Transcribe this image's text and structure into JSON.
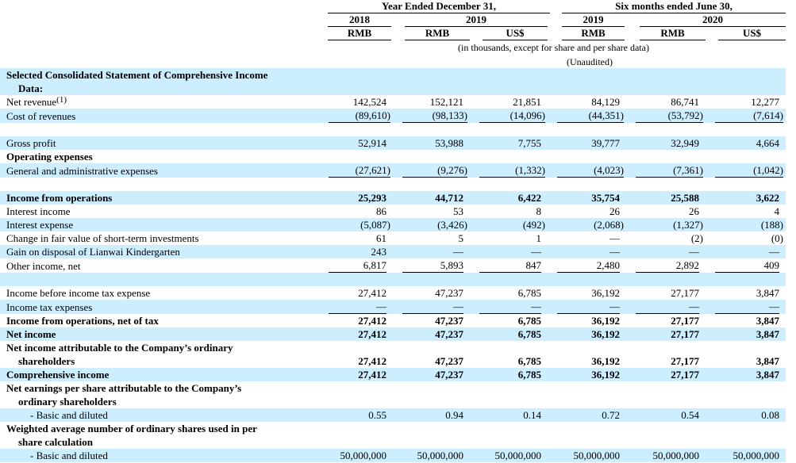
{
  "header": {
    "period1": "Year Ended December 31,",
    "period2": "Six months ended June 30,",
    "years": [
      "2018",
      "2019",
      "2019",
      "2020"
    ],
    "currencies": [
      "RMB",
      "RMB",
      "US$",
      "RMB",
      "RMB",
      "US$"
    ],
    "note": "(in thousands, except for share and per share data)",
    "unaudited": "(Unaudited)"
  },
  "rows": [
    {
      "label": [
        "Selected Consolidated Statement of Comprehensive Income",
        "Data:"
      ]
    },
    {
      "label": [
        "Net revenue"
      ],
      "footnote": "(1)",
      "values": [
        "142,524",
        "152,121",
        "21,851",
        "84,129",
        "86,741",
        "12,277"
      ]
    },
    {
      "label": [
        "Cost of revenues"
      ],
      "values": [
        "(89,610)",
        "(98,133)",
        "(14,096)",
        "(44,351)",
        "(53,792)",
        "(7,614)"
      ]
    },
    {
      "label": [
        "Gross profit"
      ],
      "values": [
        "52,914",
        "53,988",
        "7,755",
        "39,777",
        "32,949",
        "4,664"
      ]
    },
    {
      "label": [
        "Operating expenses"
      ]
    },
    {
      "label": [
        "General and administrative expenses"
      ],
      "values": [
        "(27,621)",
        "(9,276)",
        "(1,332)",
        "(4,023)",
        "(7,361)",
        "(1,042)"
      ]
    },
    {
      "label": [
        "Income from operations"
      ],
      "values": [
        "25,293",
        "44,712",
        "6,422",
        "35,754",
        "25,588",
        "3,622"
      ]
    },
    {
      "label": [
        "Interest income"
      ],
      "values": [
        "86",
        "53",
        "8",
        "26",
        "26",
        "4"
      ]
    },
    {
      "label": [
        "Interest expense"
      ],
      "values": [
        "(5,087)",
        "(3,426)",
        "(492)",
        "(2,068)",
        "(1,327)",
        "(188)"
      ]
    },
    {
      "label": [
        "Change in fair value of short-term investments"
      ],
      "values": [
        "61",
        "5",
        "1",
        "—",
        "(2)",
        "(0)"
      ]
    },
    {
      "label": [
        "Gain on disposal of Lianwai Kindergarten"
      ],
      "values": [
        "243",
        "—",
        "—",
        "—",
        "—",
        "—"
      ]
    },
    {
      "label": [
        "Other income, net"
      ],
      "values": [
        "6,817",
        "5,893",
        "847",
        "2,480",
        "2,892",
        "409"
      ]
    },
    {
      "label": [
        "Income before income tax expense"
      ],
      "values": [
        "27,412",
        "47,237",
        "6,785",
        "36,192",
        "27,177",
        "3,847"
      ]
    },
    {
      "label": [
        "Income tax expenses"
      ],
      "values": [
        "—",
        "—",
        "—",
        "—",
        "—",
        "—"
      ]
    },
    {
      "label": [
        "Income from operations, net of tax"
      ],
      "values": [
        "27,412",
        "47,237",
        "6,785",
        "36,192",
        "27,177",
        "3,847"
      ]
    },
    {
      "label": [
        "Net income"
      ],
      "values": [
        "27,412",
        "47,237",
        "6,785",
        "36,192",
        "27,177",
        "3,847"
      ]
    },
    {
      "label": [
        "Net income attributable to the Company’s ordinary",
        "shareholders"
      ],
      "values": [
        "27,412",
        "47,237",
        "6,785",
        "36,192",
        "27,177",
        "3,847"
      ]
    },
    {
      "label": [
        "Comprehensive income"
      ],
      "values": [
        "27,412",
        "47,237",
        "6,785",
        "36,192",
        "27,177",
        "3,847"
      ]
    },
    {
      "label": [
        "Net earnings per share attributable to the Company’s",
        "ordinary shareholders"
      ]
    },
    {
      "label": [
        "- Basic and diluted"
      ],
      "values": [
        "0.55",
        "0.94",
        "0.14",
        "0.72",
        "0.54",
        "0.08"
      ]
    },
    {
      "label": [
        "Weighted average number of ordinary shares used in per",
        "share calculation"
      ]
    },
    {
      "label": [
        "- Basic and diluted"
      ],
      "values": [
        "50,000,000",
        "50,000,000",
        "50,000,000",
        "50,000,000",
        "50,000,000",
        "50,000,000"
      ]
    }
  ]
}
